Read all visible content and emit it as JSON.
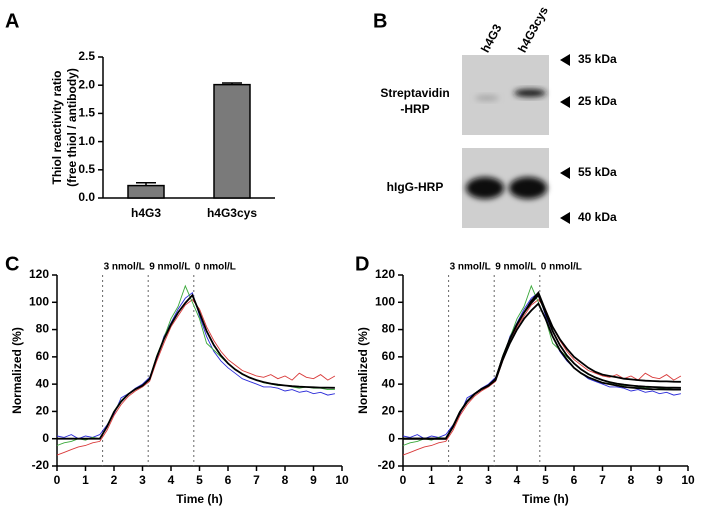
{
  "chart_data": [
    {
      "type": "bar",
      "label": "A",
      "ylabel": [
        "Thiol reactivity ratio",
        "(free thiol / antibody)"
      ],
      "categories": [
        "h4G3",
        "h4G3cys"
      ],
      "values": [
        0.22,
        2.01
      ],
      "errors": [
        0.05,
        0.03
      ],
      "color": "#7a7a7a",
      "ylim": [
        0,
        2.5
      ],
      "yticks": [
        {
          "value": 0,
          "label": "0.0"
        },
        0.5,
        {
          "value": 1,
          "label": "1.0"
        },
        1.5,
        {
          "value": 2,
          "label": "2.0"
        },
        2.5
      ]
    },
    {
      "type": "line",
      "label": "C",
      "xlabel": "Time (h)",
      "ylabel": "Normalized (%)",
      "xlim": [
        0,
        10
      ],
      "xticks": [
        0,
        1,
        2,
        3,
        4,
        5,
        6,
        7,
        8,
        9,
        10
      ],
      "ylim": [
        -20,
        120
      ],
      "yticks": [
        -20,
        0,
        20,
        40,
        60,
        80,
        100,
        120
      ],
      "annotations": [
        {
          "x": 1.6,
          "text": "3 nmol/L"
        },
        {
          "x": 3.2,
          "text": "9 nmol/L"
        },
        {
          "x": 4.8,
          "text": "0 nmol/L"
        }
      ],
      "x": [
        0,
        0.25,
        0.5,
        0.75,
        1,
        1.25,
        1.5,
        1.75,
        2,
        2.25,
        2.5,
        2.75,
        3,
        3.25,
        3.5,
        3.75,
        4,
        4.25,
        4.5,
        4.75,
        5,
        5.25,
        5.5,
        5.75,
        6,
        6.25,
        6.5,
        6.75,
        7,
        7.25,
        7.5,
        7.75,
        8,
        8.25,
        8.5,
        8.75,
        9,
        9.25,
        9.5,
        9.75
      ],
      "series": [
        {
          "color": "#2b2bd9",
          "values": [
            2,
            1,
            3,
            0,
            2,
            1,
            3,
            10,
            18,
            30,
            33,
            37,
            40,
            45,
            58,
            75,
            85,
            95,
            103,
            107,
            90,
            75,
            64,
            57,
            52,
            48,
            44,
            42,
            40,
            38,
            38,
            37,
            35,
            36,
            34,
            35,
            33,
            34,
            32,
            33
          ]
        },
        {
          "color": "#d93a3a",
          "values": [
            -12,
            -10,
            -8,
            -6,
            -5,
            -3,
            -2,
            6,
            17,
            25,
            31,
            35,
            38,
            42,
            57,
            70,
            82,
            90,
            98,
            102,
            95,
            82,
            72,
            64,
            58,
            54,
            50,
            48,
            46,
            45,
            47,
            44,
            46,
            43,
            48,
            45,
            44,
            47,
            43,
            46
          ]
        },
        {
          "color": "#3aa83a",
          "values": [
            -5,
            -3,
            -2,
            0,
            -1,
            1,
            0,
            9,
            20,
            28,
            33,
            36,
            39,
            44,
            61,
            74,
            88,
            97,
            112,
            100,
            88,
            70,
            65,
            60,
            55,
            51,
            47,
            45,
            43,
            41,
            40,
            39,
            39,
            38,
            37,
            38,
            37,
            37,
            36,
            36
          ]
        },
        {
          "color": "#000000",
          "values": [
            0,
            0,
            0,
            0,
            0,
            0,
            0,
            8.7,
            19.6,
            27.2,
            32.6,
            36.3,
            38.9,
            43.7,
            59.9,
            73,
            83.8,
            92.5,
            99.5,
            105.2,
            92.3,
            78.9,
            68.7,
            61,
            55.2,
            50.8,
            47.4,
            44.9,
            43,
            41.5,
            40.4,
            39.6,
            39,
            38.5,
            38.1,
            37.9,
            37.7,
            37.5,
            37.4,
            37.3
          ]
        }
      ]
    },
    {
      "type": "line",
      "label": "D",
      "xlabel": "Time (h)",
      "ylabel": "Normalized (%)",
      "xlim": [
        0,
        10
      ],
      "xticks": [
        0,
        1,
        2,
        3,
        4,
        5,
        6,
        7,
        8,
        9,
        10
      ],
      "ylim": [
        -20,
        120
      ],
      "yticks": [
        -20,
        0,
        20,
        40,
        60,
        80,
        100,
        120
      ],
      "annotations": [
        {
          "x": 1.6,
          "text": "3 nmol/L"
        },
        {
          "x": 3.2,
          "text": "9 nmol/L"
        },
        {
          "x": 4.8,
          "text": "0 nmol/L"
        }
      ],
      "x": [
        0,
        0.25,
        0.5,
        0.75,
        1,
        1.25,
        1.5,
        1.75,
        2,
        2.25,
        2.5,
        2.75,
        3,
        3.25,
        3.5,
        3.75,
        4,
        4.25,
        4.5,
        4.75,
        5,
        5.25,
        5.5,
        5.75,
        6,
        6.25,
        6.5,
        6.75,
        7,
        7.25,
        7.5,
        7.75,
        8,
        8.25,
        8.5,
        8.75,
        9,
        9.25,
        9.5,
        9.75
      ],
      "series": [
        {
          "color": "#2b2bd9",
          "values": [
            2,
            1,
            3,
            0,
            2,
            1,
            3,
            10,
            18,
            30,
            33,
            37,
            40,
            45,
            58,
            75,
            85,
            95,
            103,
            107,
            90,
            75,
            64,
            57,
            52,
            48,
            44,
            42,
            40,
            38,
            38,
            37,
            35,
            36,
            34,
            35,
            33,
            34,
            32,
            33
          ]
        },
        {
          "color": "#d93a3a",
          "values": [
            -12,
            -10,
            -8,
            -6,
            -5,
            -3,
            -2,
            6,
            17,
            25,
            31,
            35,
            38,
            42,
            57,
            70,
            82,
            90,
            98,
            102,
            95,
            82,
            72,
            64,
            58,
            54,
            50,
            48,
            46,
            45,
            47,
            44,
            46,
            43,
            48,
            45,
            44,
            47,
            43,
            46
          ]
        },
        {
          "color": "#3aa83a",
          "values": [
            -5,
            -3,
            -2,
            0,
            -1,
            1,
            0,
            9,
            20,
            28,
            33,
            36,
            39,
            44,
            61,
            74,
            88,
            97,
            112,
            100,
            88,
            70,
            65,
            60,
            55,
            51,
            47,
            45,
            43,
            41,
            40,
            39,
            39,
            38,
            37,
            38,
            37,
            37,
            36,
            36
          ]
        },
        {
          "color": "#000000",
          "values": [
            0,
            0,
            0,
            0,
            0,
            0,
            0,
            8.7,
            19.6,
            27.2,
            32.6,
            36.3,
            38.9,
            43.7,
            59.9,
            73,
            83.8,
            92.5,
            99.5,
            105.2,
            92.3,
            78.9,
            68.7,
            61,
            55.2,
            50.8,
            47.4,
            44.9,
            43,
            41.5,
            40.4,
            39.6,
            39,
            38.5,
            38.1,
            37.9,
            37.7,
            37.5,
            37.4,
            37.3
          ]
        },
        {
          "color": "#000000",
          "values": [
            0,
            0,
            0,
            0,
            0,
            0,
            0,
            8.7,
            19.6,
            27.2,
            32.6,
            36.3,
            38.9,
            43.7,
            59.9,
            73,
            83.8,
            92.5,
            101,
            107,
            94,
            82,
            73,
            66,
            60,
            56,
            52,
            49,
            47,
            46,
            45,
            44,
            43.5,
            43,
            42.5,
            42.3,
            42.1,
            42,
            41.8,
            41.7
          ]
        },
        {
          "color": "#000000",
          "values": [
            0,
            0,
            0,
            0,
            0,
            0,
            0,
            8.7,
            19.6,
            27.2,
            32.6,
            36.3,
            38.9,
            43,
            58,
            70,
            80,
            88,
            94,
            99,
            88,
            75,
            65,
            58,
            52,
            48,
            45,
            43,
            41,
            40,
            39,
            38,
            37.5,
            37,
            36.5,
            36.3,
            36.2,
            36.1,
            36,
            36
          ]
        }
      ]
    }
  ],
  "figure_b": {
    "label": "B",
    "lanes": [
      "h4G3",
      "h4G3cys"
    ],
    "rows": [
      {
        "label": [
          "Streptavidin",
          "-HRP"
        ],
        "markers": [
          "35 kDa",
          "25 kDa"
        ]
      },
      {
        "label": [
          "hIgG-HRP"
        ],
        "markers": [
          "55 kDa",
          "40 kDa"
        ]
      }
    ]
  }
}
